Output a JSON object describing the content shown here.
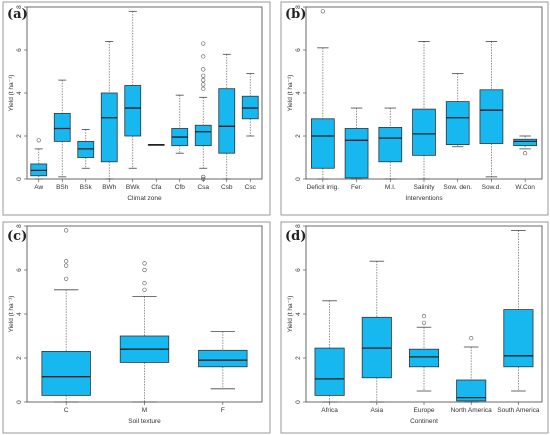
{
  "chart_data": [
    {
      "type": "box",
      "panel_label": "(a)",
      "xlabel": "Climat zone",
      "ylabel": "Yield (t ha⁻¹)",
      "ylim": [
        0,
        8
      ],
      "yticks": [
        "0",
        "2",
        "4",
        "6",
        "8"
      ],
      "categories": [
        "Aw",
        "BSh",
        "BSk",
        "BWh",
        "BWk",
        "Cfa",
        "Cfb",
        "Csa",
        "Csb",
        "Csc"
      ],
      "boxes": [
        {
          "category": "Aw",
          "min": 0.0,
          "q1": 0.15,
          "median": 0.4,
          "q3": 0.7,
          "max": 1.4,
          "outliers": [
            1.8
          ]
        },
        {
          "category": "BSh",
          "min": 0.1,
          "q1": 1.75,
          "median": 2.35,
          "q3": 3.05,
          "max": 4.6,
          "outliers": []
        },
        {
          "category": "BSk",
          "min": 0.5,
          "q1": 1.0,
          "median": 1.4,
          "q3": 1.75,
          "max": 2.3,
          "outliers": []
        },
        {
          "category": "BWh",
          "min": 0.0,
          "q1": 0.8,
          "median": 2.85,
          "q3": 4.0,
          "max": 6.4,
          "outliers": []
        },
        {
          "category": "BWk",
          "min": 0.5,
          "q1": 2.0,
          "median": 3.3,
          "q3": 4.35,
          "max": 7.8,
          "outliers": []
        },
        {
          "category": "Cfa",
          "min": 1.6,
          "q1": 1.6,
          "median": 1.6,
          "q3": 1.6,
          "max": 1.6,
          "outliers": []
        },
        {
          "category": "Cfb",
          "min": 1.2,
          "q1": 1.55,
          "median": 1.95,
          "q3": 2.35,
          "max": 3.9,
          "outliers": []
        },
        {
          "category": "Csa",
          "min": 0.5,
          "q1": 1.55,
          "median": 2.2,
          "q3": 2.5,
          "max": 3.8,
          "outliers": [
            0.0,
            0.1,
            4.2,
            4.4,
            4.6,
            4.8,
            5.1,
            5.7,
            6.3
          ]
        },
        {
          "category": "Csb",
          "min": 0.0,
          "q1": 1.2,
          "median": 2.45,
          "q3": 4.2,
          "max": 5.8,
          "outliers": []
        },
        {
          "category": "Csc",
          "min": 2.0,
          "q1": 2.8,
          "median": 3.3,
          "q3": 3.85,
          "max": 4.9,
          "outliers": []
        }
      ]
    },
    {
      "type": "box",
      "panel_label": "(b)",
      "xlabel": "Interventions",
      "ylabel": "Yield (t ha⁻¹)",
      "ylim": [
        0,
        8
      ],
      "yticks": [
        "0",
        "2",
        "4",
        "6",
        "8"
      ],
      "categories": [
        "Deficit irrig.",
        "Fer.",
        "M.I.",
        "Salinity",
        "Sow. den.",
        "Sow.d.",
        "W.Con"
      ],
      "boxes": [
        {
          "category": "Deficit irrig.",
          "min": 0.0,
          "q1": 0.5,
          "median": 2.0,
          "q3": 2.8,
          "max": 6.1,
          "outliers": [
            7.8
          ]
        },
        {
          "category": "Fer.",
          "min": 0.0,
          "q1": 0.05,
          "median": 1.8,
          "q3": 2.35,
          "max": 3.3,
          "outliers": []
        },
        {
          "category": "M.I.",
          "min": 0.0,
          "q1": 0.8,
          "median": 1.9,
          "q3": 2.4,
          "max": 3.3,
          "outliers": []
        },
        {
          "category": "Salinity",
          "min": 0.0,
          "q1": 1.1,
          "median": 2.1,
          "q3": 3.25,
          "max": 6.4,
          "outliers": []
        },
        {
          "category": "Sow. den.",
          "min": 1.5,
          "q1": 1.6,
          "median": 2.85,
          "q3": 3.6,
          "max": 4.9,
          "outliers": []
        },
        {
          "category": "Sow.d.",
          "min": 0.1,
          "q1": 1.65,
          "median": 3.2,
          "q3": 4.15,
          "max": 6.4,
          "outliers": []
        },
        {
          "category": "W.Con",
          "min": 1.4,
          "q1": 1.55,
          "median": 1.75,
          "q3": 1.85,
          "max": 2.0,
          "outliers": [
            1.2
          ]
        }
      ]
    },
    {
      "type": "box",
      "panel_label": "(c)",
      "xlabel": "Soil texture",
      "ylabel": "Yield (t ha⁻¹)",
      "ylim": [
        0,
        8
      ],
      "yticks": [
        "0",
        "2",
        "4",
        "6",
        "8"
      ],
      "categories": [
        "C",
        "M",
        "F"
      ],
      "boxes": [
        {
          "category": "C",
          "min": 0.0,
          "q1": 0.3,
          "median": 1.15,
          "q3": 2.3,
          "max": 5.1,
          "outliers": [
            5.6,
            6.2,
            6.4,
            7.8
          ]
        },
        {
          "category": "M",
          "min": 0.0,
          "q1": 1.8,
          "median": 2.4,
          "q3": 3.0,
          "max": 4.8,
          "outliers": [
            5.1,
            5.4,
            6.0,
            6.3
          ]
        },
        {
          "category": "F",
          "min": 0.6,
          "q1": 1.6,
          "median": 1.9,
          "q3": 2.35,
          "max": 3.2,
          "outliers": []
        }
      ]
    },
    {
      "type": "box",
      "panel_label": "(d)",
      "xlabel": "Continent",
      "ylabel": "Yield (t ha⁻¹)",
      "ylim": [
        0,
        8
      ],
      "yticks": [
        "0",
        "2",
        "4",
        "6",
        "8"
      ],
      "categories": [
        "Africa",
        "Asia",
        "Europe",
        "North America",
        "South America"
      ],
      "boxes": [
        {
          "category": "Africa",
          "min": 0.0,
          "q1": 0.3,
          "median": 1.05,
          "q3": 2.45,
          "max": 4.6,
          "outliers": []
        },
        {
          "category": "Asia",
          "min": 0.0,
          "q1": 1.1,
          "median": 2.45,
          "q3": 3.85,
          "max": 6.4,
          "outliers": []
        },
        {
          "category": "Europe",
          "min": 0.5,
          "q1": 1.6,
          "median": 2.05,
          "q3": 2.4,
          "max": 3.4,
          "outliers": [
            3.6,
            3.9
          ]
        },
        {
          "category": "North America",
          "min": 0.0,
          "q1": 0.05,
          "median": 0.2,
          "q3": 1.0,
          "max": 2.5,
          "outliers": [
            2.9
          ]
        },
        {
          "category": "South America",
          "min": 0.5,
          "q1": 1.6,
          "median": 2.1,
          "q3": 4.2,
          "max": 7.8,
          "outliers": []
        }
      ]
    }
  ]
}
